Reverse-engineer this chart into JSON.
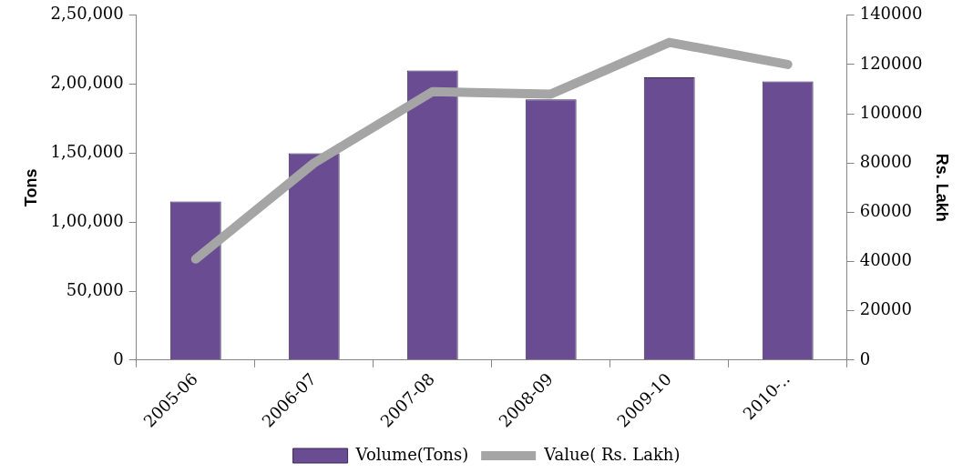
{
  "chart_data": {
    "type": "bar",
    "ylabel": "Tons",
    "y2label": "Rs. Lakh",
    "categories": [
      "2005-06",
      "2006-07",
      "2007-08",
      "2008-09",
      "2009-10",
      "2010-.."
    ],
    "series": [
      {
        "name": "Volume(Tons)",
        "color": "#6a4c93",
        "values": [
          115000,
          150000,
          210000,
          189000,
          205000,
          202000
        ]
      },
      {
        "name": "Value( Rs. Lakh)",
        "type": "line",
        "axis": "y2",
        "color": "#a5a5a5",
        "values": [
          41000,
          80000,
          109000,
          108000,
          129000,
          120000
        ]
      }
    ],
    "ylim": [
      0,
      250000
    ],
    "yticks": [
      0,
      {
        "value": 50000,
        "label": "50,000"
      },
      {
        "value": 100000,
        "label": "1,00,000"
      },
      {
        "value": 150000,
        "label": "1,50,000"
      },
      {
        "value": 200000,
        "label": "2,00,000"
      },
      {
        "value": 250000,
        "label": "2,50,000"
      }
    ],
    "y2lim": [
      0,
      140000
    ],
    "y2ticks": [
      0,
      20000,
      40000,
      60000,
      80000,
      100000,
      120000,
      140000
    ],
    "grid": false,
    "legend": "bottom",
    "marker": "none"
  }
}
